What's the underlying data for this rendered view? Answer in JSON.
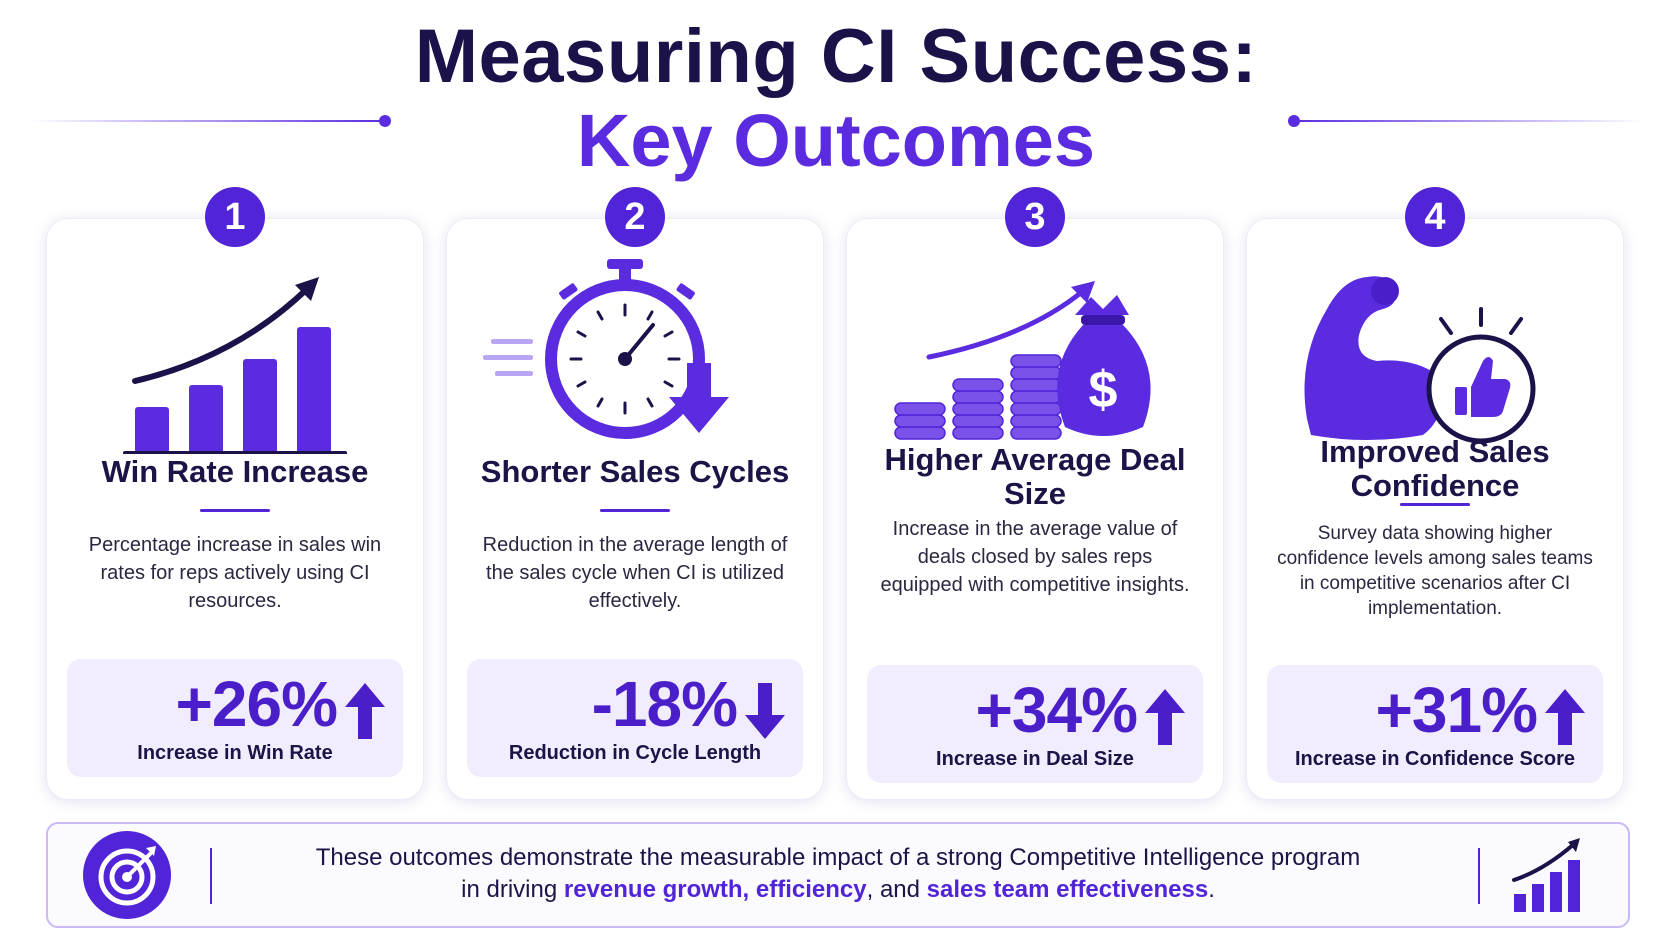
{
  "title": {
    "line1": "Measuring CI Success:",
    "line2": "Key Outcomes"
  },
  "colors": {
    "accent": "#5124d8",
    "dark": "#1b1446",
    "stat_bg": "#f1edff"
  },
  "cards": [
    {
      "number": "1",
      "icon": "growth-bar-chart-icon",
      "title": "Win Rate Increase",
      "description": "Percentage increase in sales win rates for reps actively using CI resources.",
      "stat": "+26%",
      "direction": "up",
      "stat_label": "Increase in Win Rate"
    },
    {
      "number": "2",
      "icon": "stopwatch-icon",
      "title": "Shorter Sales Cycles",
      "description": "Reduction in the average length of the sales cycle when CI is utilized effectively.",
      "stat": "-18%",
      "direction": "down",
      "stat_label": "Reduction in Cycle Length"
    },
    {
      "number": "3",
      "icon": "money-bag-coins-icon",
      "title": "Higher Average Deal Size",
      "description": "Increase in the average value of deals closed by sales reps equipped with competitive insights.",
      "stat": "+34%",
      "direction": "up",
      "stat_label": "Increase in Deal Size"
    },
    {
      "number": "4",
      "icon": "flexed-arm-thumbs-up-icon",
      "title": "Improved Sales Confidence",
      "description": "Survey data showing higher confidence levels among sales teams in competitive scenarios after CI implementation.",
      "stat": "+31%",
      "direction": "up",
      "stat_label": "Increase in Confidence Score"
    }
  ],
  "footer": {
    "line1": "These outcomes demonstrate the measurable impact of a strong Competitive Intelligence program",
    "line2_prefix": "in driving ",
    "hl1": "revenue growth,",
    "sep1": " ",
    "hl2": "efficiency",
    "sep2": ", and ",
    "hl3": "sales team effectiveness",
    "suffix": ".",
    "left_icon": "target-icon",
    "right_icon": "growth-chart-icon"
  }
}
